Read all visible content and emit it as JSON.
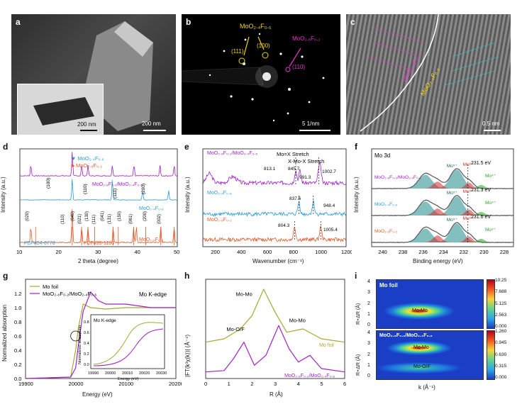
{
  "panels": {
    "a": {
      "label": "a",
      "scale_main": "200 nm",
      "scale_inset": "200 nm"
    },
    "b": {
      "label": "b",
      "title": "MoO₂.₄F₀.₆",
      "title2": "MoO₂.₈F₀.₂",
      "spots": [
        "(111)",
        "(100)",
        "(110)"
      ],
      "scale": "5 1/nm"
    },
    "c": {
      "label": "c",
      "phase1": "MoO₂.₄F₀.₆",
      "phase2": "MoO₂.₈F₀.₂",
      "scale": "0.5 nm"
    },
    "d": {
      "label": "d",
      "legend": [
        "MoO₂.₄F₀.₆",
        "MoO₂.₈F₀.₂"
      ],
      "curves": [
        "MoO₂.₈F₀.₂/MoO₂.₄F₀.₆",
        "MoO₂.₄F₀.₆",
        "MoO₂.₈F₀.₂"
      ],
      "pdf": [
        "PDF#24-0770",
        "PDF#25-1103"
      ],
      "peaks_top": [
        "(100)",
        "(110)",
        "(111)",
        "(200)"
      ],
      "peaks_bottom": [
        "(020)",
        "(110)",
        "(040)",
        "(021)",
        "(130)",
        "(111)",
        "(041)",
        "(131)",
        "(150)",
        "(061)",
        "(200)",
        "(002)"
      ],
      "xlabel": "2 theta (degree)",
      "ylabel": "Intensity (a.u.)",
      "xticks": [
        "10",
        "20",
        "30",
        "40",
        "50"
      ]
    },
    "e": {
      "label": "e",
      "curves": [
        "MoO₂.₈F₀.₂/MoO₂.₄F₀.₆",
        "MoO₂.₄F₀.₆",
        "MoO₂.₈F₀.₂"
      ],
      "ann1": "Mo=X Stretch",
      "ann2": "X-Mo-X Stretch",
      "peaks": [
        "813.1",
        "845.7",
        "991.3",
        "1002.7",
        "837.6",
        "948.4",
        "804.3",
        "1005.4"
      ],
      "xlabel": "Wavenumber (cm⁻¹)",
      "ylabel": "Intensity (a.u.)",
      "xticks": [
        "200",
        "400",
        "600",
        "800",
        "1000",
        "1200"
      ]
    },
    "f": {
      "label": "f",
      "title": "Mo 3d",
      "curves": [
        "MoO₂.₈F₀.₂/MoO₂.₄F₀.₆",
        "MoO₂.₄F₀.₆",
        "MoO₂.₈F₀.₂"
      ],
      "energies": [
        "231.5 eV",
        "231.3 eV",
        "231.6 eV"
      ],
      "ox": [
        "Mo⁵⁺",
        "Mo⁶⁺",
        "Mo⁴⁺"
      ],
      "xlabel": "Binding energy (eV)",
      "ylabel": "Intensity (a.u.)",
      "xticks": [
        "240",
        "238",
        "236",
        "234",
        "232",
        "230",
        "228"
      ]
    },
    "g": {
      "label": "g",
      "legend": [
        "Mo foil",
        "MoO₂.₈F₀.₂/MoO₂.₄F₀.₆"
      ],
      "title": "Mo K-edge",
      "inset_title": "Mo K-edge",
      "xlabel": "Energy (eV)",
      "ylabel": "Normalized absorption",
      "xticks": [
        "19900",
        "20000",
        "20100",
        "20200"
      ],
      "yticks": [
        "0.0",
        "0.2",
        "0.4",
        "0.6",
        "0.8",
        "1.0",
        "1.2"
      ],
      "inset_xlabel": "Energy (eV)",
      "inset_ylabel": "Normalized absorption",
      "inset_xticks": [
        "19990",
        "20000",
        "20010",
        "20020",
        "20030"
      ],
      "inset_yticks": [
        "0.0",
        "0.2",
        "0.4",
        "0.6",
        "0.8"
      ]
    },
    "h": {
      "label": "h",
      "ann": [
        "Mo-Mo",
        "Mo-O/F",
        "Mo-Mo"
      ],
      "curves": [
        "Mo foil",
        "MoO₂.₈F₀.₂/MoO₂.₄F₀.₆"
      ],
      "xlabel": "R (Å)",
      "ylabel": "|FT(k³χ(k))| (Å⁻⁴)",
      "xticks": [
        "0",
        "1",
        "2",
        "3",
        "4",
        "5",
        "6"
      ]
    },
    "i": {
      "label": "i",
      "top_title": "Mo foil",
      "bottom_title": "MoO₂.₈F₀.₂/MoO₂.₄F₀.₆",
      "top_ann": "Mo-Mo",
      "bottom_ann1": "Mo-Mo",
      "bottom_ann2": "Mo-O/F",
      "xlabel": "k (Å⁻¹)",
      "ylabel": "R+ΔR (Å)",
      "yticks": [
        "0",
        "1",
        "2",
        "3",
        "4"
      ],
      "cb_top": [
        "10.25",
        "7.688",
        "5.125",
        "2.563",
        "0.000"
      ],
      "cb_bottom": [
        "1.260",
        "0.945",
        "0.630",
        "0.315",
        "0.000"
      ]
    }
  },
  "chart_data": [
    {
      "type": "line",
      "panel": "d",
      "xlabel": "2 theta (degree)",
      "ylabel": "Intensity (a.u.)",
      "xlim": [
        10,
        50
      ],
      "series": [
        {
          "name": "MoO₂.₈F₀.₂/MoO₂.₄F₀.₆",
          "peaks_x": [
            12.8,
            23.3,
            25.7,
            27.3,
            33.5,
            39.0,
            45.6,
            49.2
          ]
        },
        {
          "name": "MoO₂.₄F₀.₆",
          "peaks_x": [
            23.3,
            33.5,
            41.2,
            47.8
          ]
        },
        {
          "name": "MoO₂.₈F₀.₂",
          "peaks_x": [
            12.8,
            23.3,
            25.7,
            27.3,
            33.7,
            38.9,
            39.6,
            45.8,
            49.2
          ]
        }
      ]
    },
    {
      "type": "line",
      "panel": "e",
      "xlabel": "Wavenumber (cm⁻¹)",
      "ylabel": "Intensity (a.u.)",
      "xlim": [
        100,
        1200
      ],
      "series": [
        {
          "name": "MoO₂.₈F₀.₂/MoO₂.₄F₀.₆",
          "peaks_x": [
            813.1,
            845.7,
            991.3,
            1002.7
          ]
        },
        {
          "name": "MoO₂.₄F₀.₆",
          "peaks_x": [
            837.6,
            948.4
          ]
        },
        {
          "name": "MoO₂.₈F₀.₂",
          "peaks_x": [
            804.3,
            1005.4
          ]
        }
      ]
    },
    {
      "type": "line",
      "panel": "f",
      "xlabel": "Binding energy (eV)",
      "ylabel": "Intensity (a.u.)",
      "xlim": [
        241,
        227
      ],
      "series": [
        {
          "name": "MoO₂.₈F₀.₂/MoO₂.₄F₀.₆",
          "mo5_ev": 231.5
        },
        {
          "name": "MoO₂.₄F₀.₆",
          "mo5_ev": 231.3
        },
        {
          "name": "MoO₂.₈F₀.₂",
          "mo5_ev": 231.6
        }
      ]
    },
    {
      "type": "line",
      "panel": "g",
      "xlabel": "Energy (eV)",
      "ylabel": "Normalized absorption",
      "xlim": [
        19900,
        20200
      ],
      "ylim": [
        0,
        1.4
      ],
      "series": [
        {
          "name": "Mo foil",
          "x": [
            19900,
            19990,
            20000,
            20005,
            20015,
            20030,
            20060,
            20100,
            20150,
            20200
          ],
          "values": [
            0.0,
            0.02,
            0.4,
            0.7,
            1.05,
            1.0,
            0.98,
            1.0,
            1.0,
            1.0
          ]
        },
        {
          "name": "MoO₂.₈F₀.₂/MoO₂.₄F₀.₆",
          "x": [
            19900,
            19990,
            20000,
            20005,
            20015,
            20030,
            20045,
            20060,
            20100,
            20150,
            20200
          ],
          "values": [
            0.0,
            0.02,
            0.15,
            0.45,
            0.95,
            1.22,
            1.1,
            1.05,
            1.05,
            1.0,
            1.0
          ]
        }
      ]
    },
    {
      "type": "line",
      "panel": "h",
      "xlabel": "R (Å)",
      "ylabel": "|FT(k³χ(k))| (Å⁻⁴)",
      "xlim": [
        0,
        6
      ],
      "series": [
        {
          "name": "Mo foil",
          "x": [
            0,
            0.8,
            1.5,
            2.0,
            2.5,
            3.0,
            3.5,
            4.2,
            5.0,
            6.0
          ],
          "values": [
            0.55,
            0.6,
            0.75,
            0.95,
            1.35,
            1.0,
            0.7,
            0.75,
            0.6,
            0.55
          ]
        },
        {
          "name": "MoO₂.₈F₀.₂/MoO₂.₄F₀.₆",
          "x": [
            0,
            0.8,
            1.2,
            1.65,
            2.1,
            2.6,
            3.15,
            3.6,
            4.0,
            4.5,
            5.0,
            6.0
          ],
          "values": [
            0.1,
            0.12,
            0.3,
            0.55,
            0.2,
            0.35,
            0.8,
            0.45,
            0.25,
            0.35,
            0.15,
            0.1
          ]
        }
      ]
    }
  ]
}
